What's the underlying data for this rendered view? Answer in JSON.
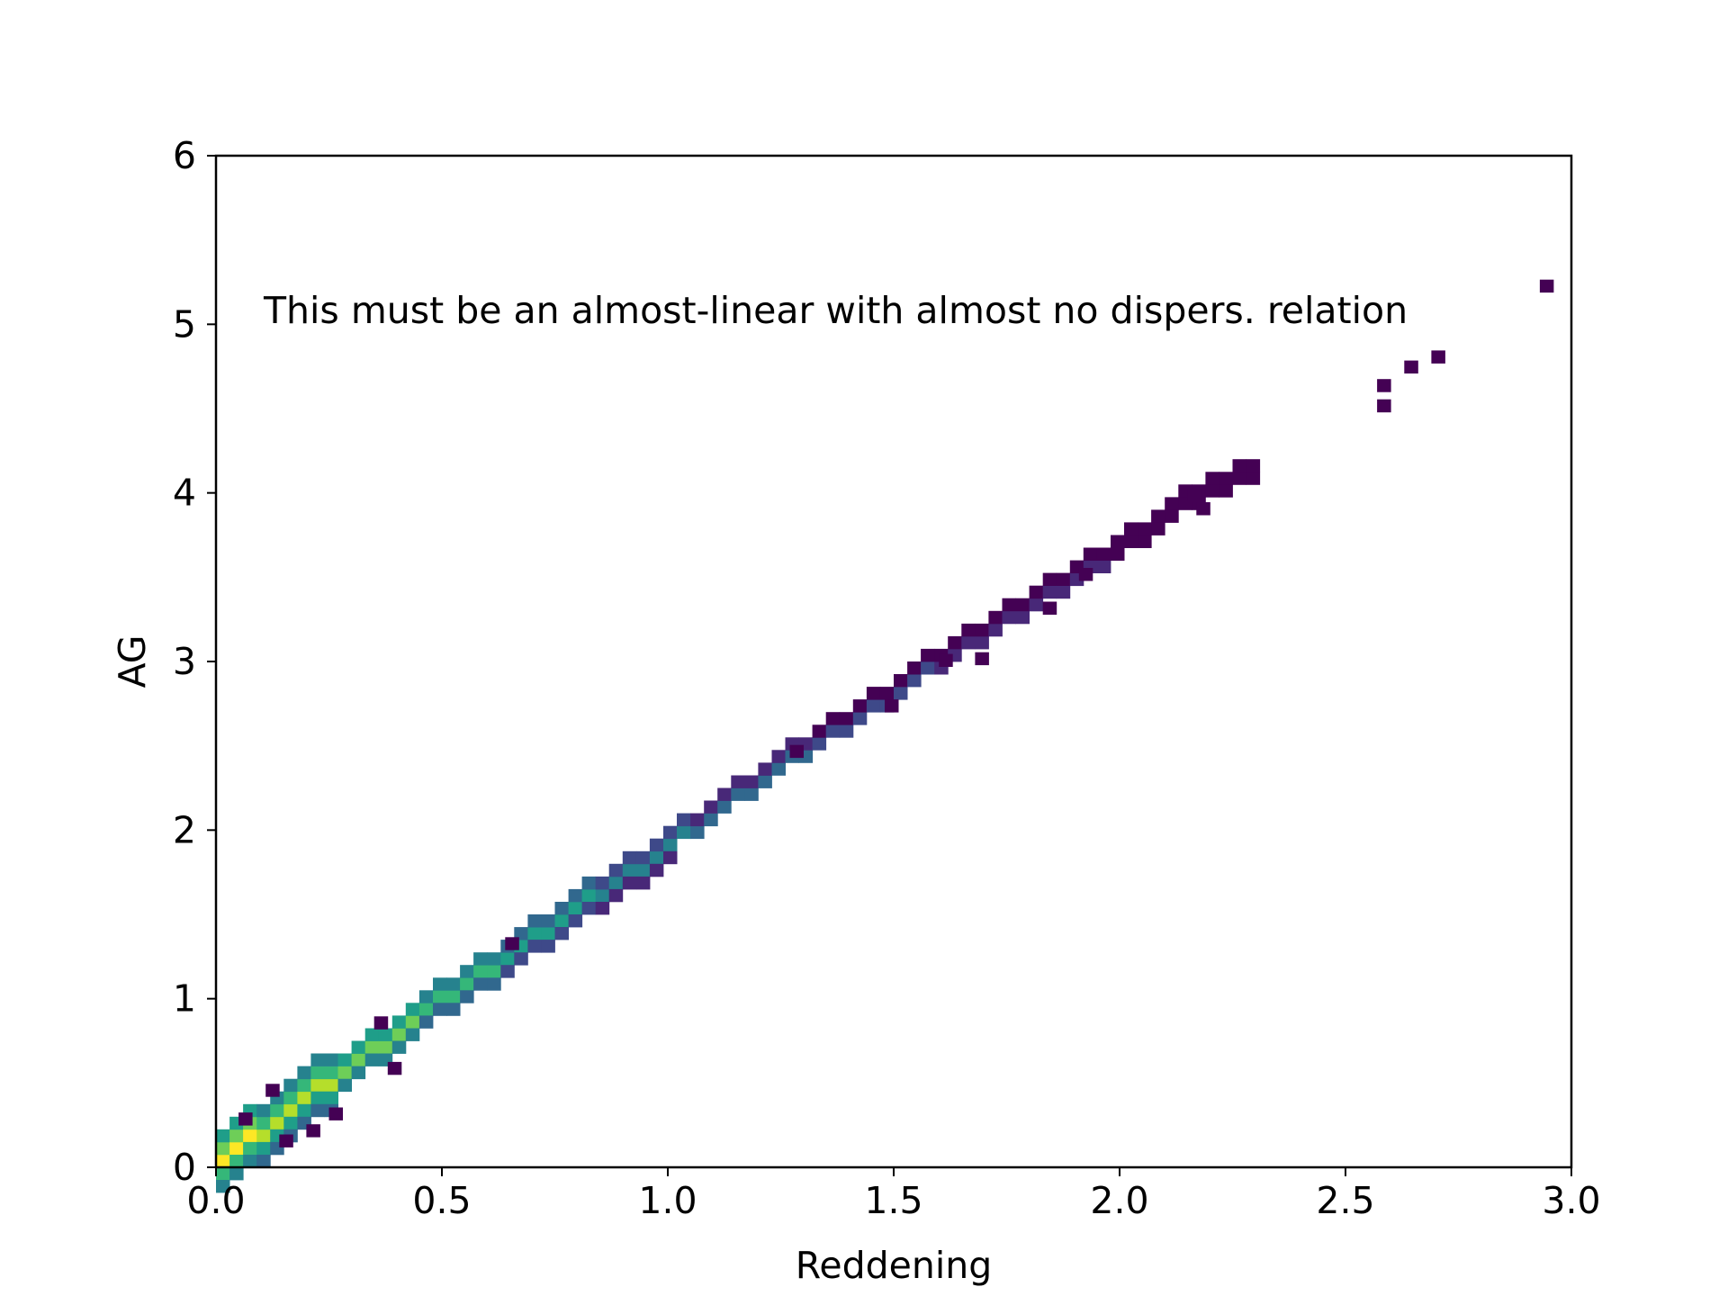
{
  "chart_data": {
    "type": "heatmap",
    "subtype": "2d-histogram",
    "title": "",
    "xlabel": "Reddening",
    "ylabel": "AG",
    "xlim": [
      0.0,
      3.0
    ],
    "ylim": [
      0,
      6
    ],
    "xticks": [
      "0.0",
      "0.5",
      "1.0",
      "1.5",
      "2.0",
      "2.5",
      "3.0"
    ],
    "yticks": [
      "0",
      "1",
      "2",
      "3",
      "4",
      "5",
      "6"
    ],
    "annotation": "This must be an almost-linear with almost no dispers. relation",
    "grid": false,
    "legend": "none",
    "colormap": "viridis",
    "colormap_colors": [
      "#440154",
      "#482878",
      "#3e4989",
      "#31688e",
      "#26828e",
      "#1f9e89",
      "#35b779",
      "#6ece58",
      "#b5de2b",
      "#fde725"
    ],
    "bin_width": {
      "x": 0.03,
      "y": 0.075
    },
    "ridge": {
      "points": [
        [
          0.0,
          0.0
        ],
        [
          0.15,
          0.31
        ],
        [
          0.3,
          0.6
        ],
        [
          0.5,
          0.99
        ],
        [
          0.75,
          1.44
        ],
        [
          1.0,
          1.89
        ],
        [
          1.25,
          2.36
        ],
        [
          1.5,
          2.8
        ],
        [
          1.75,
          3.23
        ],
        [
          2.0,
          3.64
        ],
        [
          2.15,
          3.92
        ],
        [
          2.3,
          4.12
        ]
      ],
      "density_peak": [
        0.05,
        0.15
      ]
    },
    "outliers": [
      [
        0.05,
        0.25
      ],
      [
        0.11,
        0.42
      ],
      [
        0.14,
        0.12
      ],
      [
        0.2,
        0.18
      ],
      [
        0.25,
        0.28
      ],
      [
        0.35,
        0.82
      ],
      [
        0.38,
        0.55
      ],
      [
        0.64,
        1.29
      ],
      [
        1.27,
        2.43
      ],
      [
        1.48,
        2.7
      ],
      [
        1.6,
        2.97
      ],
      [
        1.68,
        2.98
      ],
      [
        1.83,
        3.28
      ],
      [
        1.91,
        3.48
      ],
      [
        2.15,
        3.95
      ],
      [
        2.17,
        3.87
      ],
      [
        2.57,
        4.6
      ],
      [
        2.57,
        4.48
      ],
      [
        2.63,
        4.71
      ],
      [
        2.69,
        4.77
      ],
      [
        2.93,
        5.19
      ]
    ]
  }
}
